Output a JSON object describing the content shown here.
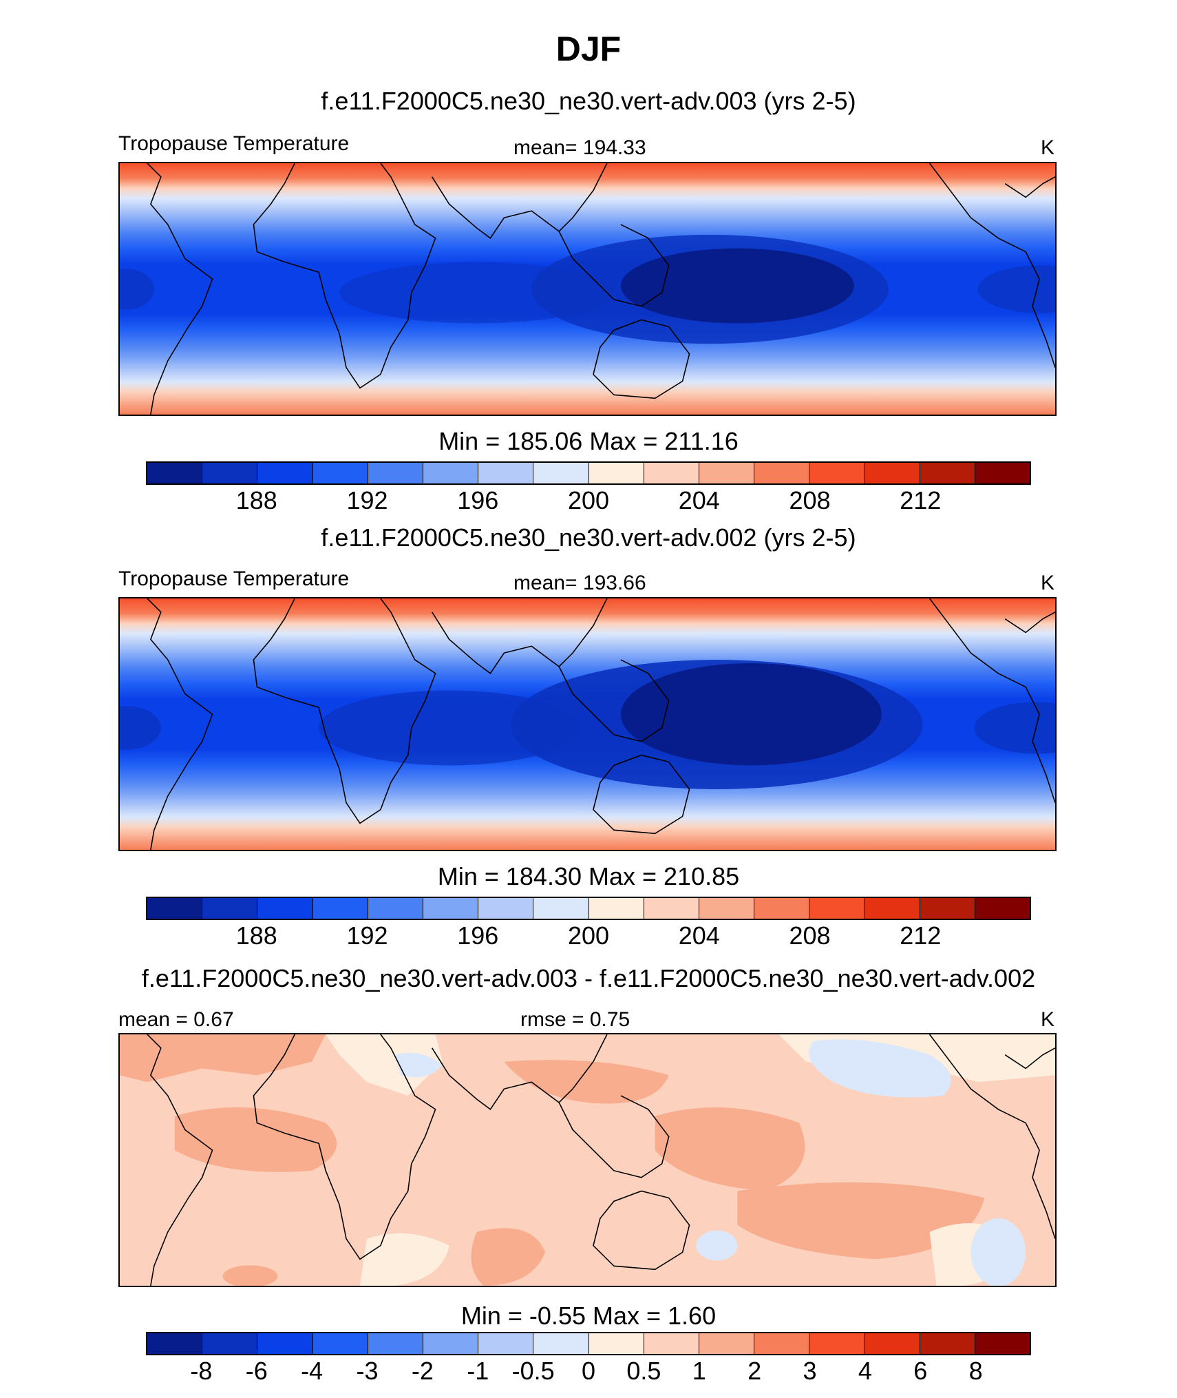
{
  "title": "DJF",
  "units": "K",
  "palette": [
    "#081d8c",
    "#0a32bf",
    "#0a40e8",
    "#1f5ff5",
    "#4a80f5",
    "#7ea6f7",
    "#b4cbf9",
    "#dbe8fc",
    "#fdeede",
    "#fcd2be",
    "#f9ad8f",
    "#f67e58",
    "#f5502a",
    "#e43212",
    "#b51c08",
    "#830000"
  ],
  "panels": [
    {
      "case": "f.e11.F2000C5.ne30_ne30.vert-adv.003 (yrs 2-5)",
      "left_label": "Tropopause Temperature",
      "center_label": "mean= 194.33",
      "unit_label": "K",
      "minmax": "Min = 185.06 Max = 211.16",
      "ticks": [
        "188",
        "192",
        "196",
        "200",
        "204",
        "208",
        "212"
      ]
    },
    {
      "case": "f.e11.F2000C5.ne30_ne30.vert-adv.002 (yrs 2-5)",
      "left_label": "Tropopause Temperature",
      "center_label": "mean= 193.66",
      "unit_label": "K",
      "minmax": "Min = 184.30 Max = 210.85",
      "ticks": [
        "188",
        "192",
        "196",
        "200",
        "204",
        "208",
        "212"
      ]
    },
    {
      "case": "f.e11.F2000C5.ne30_ne30.vert-adv.003 - f.e11.F2000C5.ne30_ne30.vert-adv.002",
      "left_label": "mean =   0.67",
      "center_label": "rmse =   0.75",
      "unit_label": "K",
      "minmax": "Min =  -0.55 Max =   1.60",
      "ticks": [
        "-8",
        "-6",
        "-4",
        "-3",
        "-2",
        "-1",
        "-0.5",
        "0",
        "0.5",
        "1",
        "2",
        "3",
        "4",
        "6",
        "8"
      ]
    }
  ]
}
